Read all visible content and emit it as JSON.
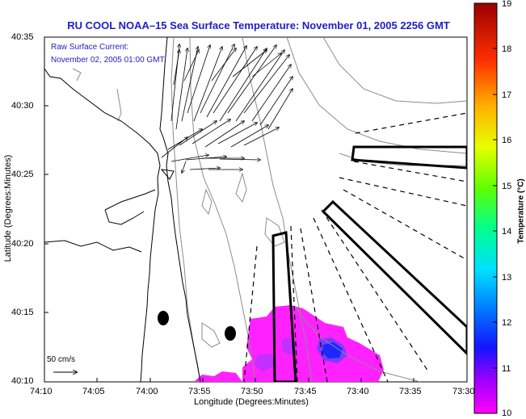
{
  "title": "RU COOL  NOAA–15  Sea Surface Temperature:  November 01, 2005 2256 GMT",
  "overlay": {
    "line1": "Raw Surface Current:",
    "line2": "November 02, 2005 01:00 GMT"
  },
  "scale_arrow_label": "50 cm/s",
  "axes": {
    "x_label": "Longitude (Degrees:Minutes)",
    "y_label": "Latitude (Degrees:Minutes)",
    "x_ticks": [
      "74:10",
      "74:05",
      "74:00",
      "73:55",
      "73:50",
      "73:45",
      "73:40",
      "73:35",
      "73:30"
    ],
    "y_ticks": [
      "40:35",
      "40:30",
      "40:25",
      "40:20",
      "40:15",
      "40:10"
    ]
  },
  "colorbar": {
    "label": "Temperature (°C)",
    "ticks": [
      "19",
      "18",
      "17",
      "16",
      "15",
      "14",
      "13",
      "12",
      "11",
      "10"
    ],
    "range": [
      10,
      19
    ],
    "colors": [
      "#ff00ff",
      "#8000ff",
      "#0000ff",
      "#0080ff",
      "#00ffff",
      "#00ff80",
      "#80ff00",
      "#ffff00",
      "#ff8000",
      "#ff0000",
      "#800000"
    ]
  },
  "colors": {
    "title": "#1e1ec8",
    "overlay_text": "#1e1ec8",
    "coastline": "#000000",
    "bathymetry": "#8c8c8c"
  }
}
